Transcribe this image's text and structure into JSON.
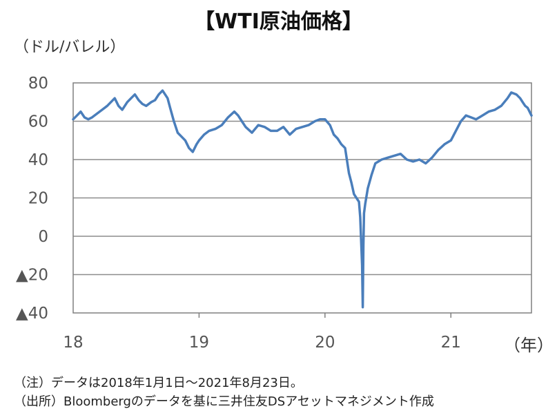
{
  "chart_data": {
    "type": "line",
    "title": "【WTI原油価格】",
    "ylabel": "（ドル/バレル）",
    "xunit": "（年）",
    "ylim": [
      -40,
      80
    ],
    "yticks": [
      80,
      60,
      40,
      20,
      0,
      -20,
      -40
    ],
    "ytick_labels": [
      "80",
      "60",
      "40",
      "20",
      "0",
      "▲20",
      "▲40"
    ],
    "xlim": [
      2018.0,
      2021.64
    ],
    "xticks": [
      2018,
      2019,
      2020,
      2021
    ],
    "xtick_labels": [
      "18",
      "19",
      "20",
      "21"
    ],
    "grid": true,
    "line_color": "#4a7ebb",
    "series": [
      {
        "x": [
          2018.0,
          2018.03,
          2018.06,
          2018.09,
          2018.12,
          2018.15,
          2018.19,
          2018.23,
          2018.27,
          2018.3,
          2018.33,
          2018.36,
          2018.39,
          2018.43,
          2018.46,
          2018.49,
          2018.52,
          2018.55,
          2018.58,
          2018.62,
          2018.65,
          2018.68,
          2018.71,
          2018.75,
          2018.77,
          2018.8,
          2018.83,
          2018.86,
          2018.89,
          2018.92,
          2018.95,
          2018.98,
          2019.0,
          2019.04,
          2019.08,
          2019.13,
          2019.18,
          2019.23,
          2019.28,
          2019.31,
          2019.34,
          2019.37,
          2019.42,
          2019.47,
          2019.52,
          2019.57,
          2019.62,
          2019.67,
          2019.72,
          2019.77,
          2019.82,
          2019.87,
          2019.92,
          2019.96,
          2020.0,
          2020.04,
          2020.07,
          2020.1,
          2020.13,
          2020.16,
          2020.19,
          2020.21,
          2020.23,
          2020.25,
          2020.27,
          2020.28,
          2020.295,
          2020.3,
          2020.305,
          2020.31,
          2020.32,
          2020.34,
          2020.37,
          2020.4,
          2020.45,
          2020.5,
          2020.55,
          2020.6,
          2020.65,
          2020.7,
          2020.75,
          2020.8,
          2020.85,
          2020.9,
          2020.95,
          2021.0,
          2021.04,
          2021.08,
          2021.12,
          2021.16,
          2021.2,
          2021.25,
          2021.3,
          2021.35,
          2021.4,
          2021.45,
          2021.48,
          2021.52,
          2021.55,
          2021.57,
          2021.59,
          2021.61,
          2021.64
        ],
        "y": [
          61,
          63,
          65,
          62,
          61,
          62,
          64,
          66,
          68,
          70,
          72,
          68,
          66,
          70,
          72,
          74,
          71,
          69,
          68,
          70,
          71,
          74,
          76,
          72,
          67,
          60,
          54,
          52,
          50,
          46,
          44,
          48,
          50,
          53,
          55,
          56,
          58,
          62,
          65,
          63,
          60,
          57,
          54,
          58,
          57,
          55,
          55,
          57,
          53,
          56,
          57,
          58,
          60,
          61,
          61,
          58,
          53,
          51,
          48,
          46,
          33,
          28,
          22,
          20,
          18,
          10,
          -15,
          -37,
          -5,
          12,
          17,
          25,
          32,
          38,
          40,
          41,
          42,
          43,
          40,
          39,
          40,
          38,
          41,
          45,
          48,
          50,
          55,
          60,
          63,
          62,
          61,
          63,
          65,
          66,
          68,
          72,
          75,
          74,
          72,
          70,
          68,
          67,
          63
        ]
      }
    ]
  },
  "notes": [
    "（注）データは2018年1月1日～2021年8月23日。",
    "（出所）Bloombergのデータを基に三井住友DSアセットマネジメント作成"
  ]
}
